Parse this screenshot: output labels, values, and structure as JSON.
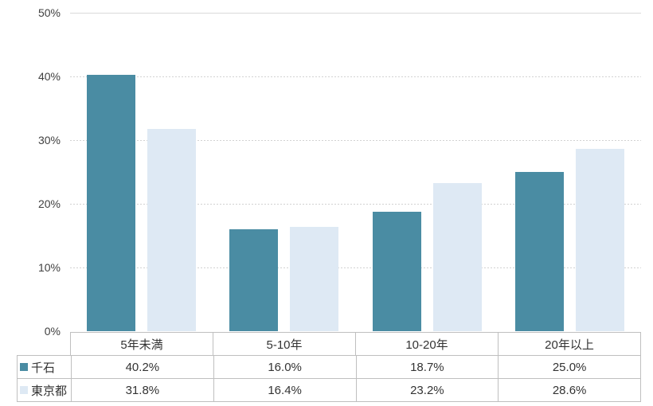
{
  "chart_data": {
    "type": "bar",
    "title": "",
    "xlabel": "",
    "ylabel": "",
    "categories": [
      "5年未満",
      "5-10年",
      "10-20年",
      "20年以上"
    ],
    "series": [
      {
        "name": "千石",
        "color": "#4a8ca3",
        "values": [
          40.2,
          16.0,
          18.7,
          25.0
        ]
      },
      {
        "name": "東京都",
        "color": "#dee9f4",
        "values": [
          31.8,
          16.4,
          23.2,
          28.6
        ]
      }
    ],
    "ylim": [
      0,
      50
    ],
    "ytick_step": 10,
    "ytick_labels": [
      "0%",
      "10%",
      "20%",
      "30%",
      "40%",
      "50%"
    ],
    "grid": "horizontal; dashed lines, topmost line solid",
    "legend_position": "left column of attached data table"
  },
  "table": {
    "header": [
      "5年未満",
      "5-10年",
      "10-20年",
      "20年以上"
    ],
    "rows": [
      {
        "label": "千石",
        "marker_color": "#4a8ca3",
        "values": [
          "40.2%",
          "16.0%",
          "18.7%",
          "25.0%"
        ]
      },
      {
        "label": "東京都",
        "marker_color": "#dee9f4",
        "values": [
          "31.8%",
          "16.4%",
          "23.2%",
          "28.6%"
        ]
      }
    ]
  },
  "colors": {
    "series_1": "#4a8ca3",
    "series_2": "#dee9f4",
    "gridline_solid": "#d9d9d9",
    "gridline_dashed": "#d2d2d2",
    "table_border": "#bfbfbf",
    "axis_text": "#404040",
    "table_text": "#333333",
    "background": "#ffffff"
  }
}
